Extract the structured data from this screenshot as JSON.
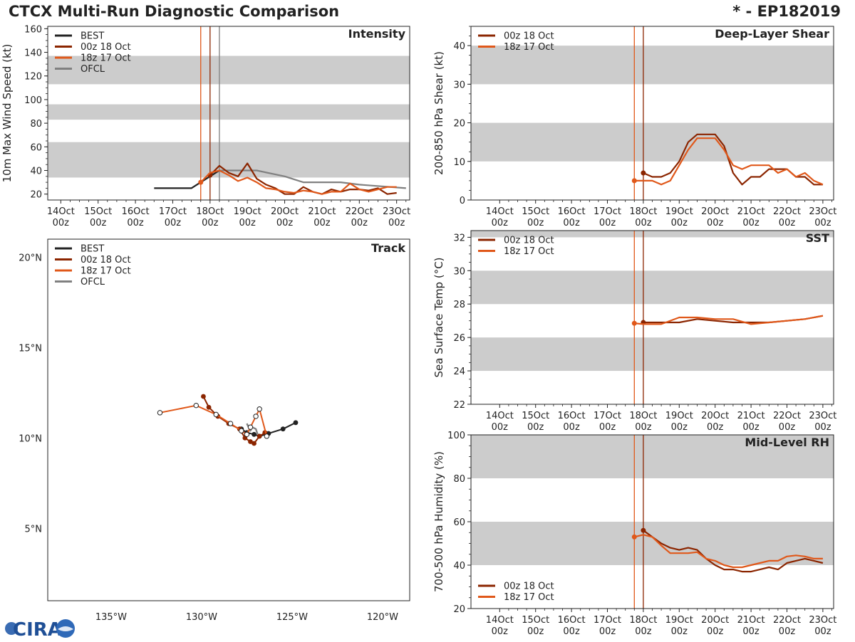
{
  "header": {
    "title": "CTCX Multi-Run Diagnostic Comparison",
    "storm": "* - EP182019"
  },
  "logo_text": "CIRA",
  "time_axis": {
    "ticks": [
      "14Oct\n00z",
      "15Oct\n00z",
      "16Oct\n00z",
      "17Oct\n00z",
      "18Oct\n00z",
      "19Oct\n00z",
      "20Oct\n00z",
      "21Oct\n00z",
      "22Oct\n00z",
      "23Oct\n00z"
    ],
    "ticks_short": [
      "14Oct\n00z",
      "15Oct\n00z",
      "16Oct\n00z",
      "17Oct\n00z",
      "18Oct\n00z",
      "19Oct\n00z",
      "20Oct\n00z",
      "21Oct\n00z",
      "22Oct\n00z",
      "23Oct\n00z"
    ]
  },
  "colors": {
    "best": "#222222",
    "run00z": "#8B2500",
    "run18z": "#E0581A",
    "ofcl": "#808080",
    "band": "#cccccc"
  },
  "chart_data": [
    {
      "id": "intensity",
      "type": "line",
      "title": "Intensity",
      "ylabel": "10m Max Wind Speed (kt)",
      "x_unit": "days since 14Oct 00z",
      "xlim": [
        -0.35,
        9.35
      ],
      "ylim": [
        15,
        162
      ],
      "yticks": [
        20,
        40,
        60,
        80,
        100,
        120,
        140,
        160
      ],
      "bands": [
        [
          34,
          64
        ],
        [
          83,
          96
        ],
        [
          113,
          137
        ]
      ],
      "vlines": [
        {
          "x": 3.75,
          "color": "run18z"
        },
        {
          "x": 4.0,
          "color": "run00z"
        },
        {
          "x": 4.25,
          "color": "ofcl"
        }
      ],
      "legend": [
        "BEST",
        "00z 18 Oct",
        "18z 17 Oct",
        "OFCL"
      ],
      "series": [
        {
          "name": "BEST",
          "color": "best",
          "x": [
            2.5,
            2.75,
            3.0,
            3.25,
            3.5,
            3.75,
            4.0,
            4.25
          ],
          "y": [
            25,
            25,
            25,
            25,
            25,
            30,
            35,
            40
          ]
        },
        {
          "name": "OFCL",
          "color": "ofcl",
          "x": [
            4.25,
            4.5,
            5.0,
            5.25,
            6.0,
            6.5,
            7.0,
            7.5,
            8.0,
            9.25
          ],
          "y": [
            40,
            40,
            40,
            40,
            35,
            30,
            30,
            30,
            28,
            25
          ]
        },
        {
          "name": "00z 18 Oct",
          "color": "run00z",
          "marker_x": 4.0,
          "x": [
            4.0,
            4.25,
            4.5,
            4.75,
            5.0,
            5.25,
            5.5,
            5.75,
            6.0,
            6.25,
            6.5,
            6.75,
            7.0,
            7.25,
            7.5,
            7.75,
            8.0,
            8.25,
            8.5,
            8.75,
            9.0
          ],
          "y": [
            36,
            44,
            38,
            35,
            46,
            33,
            28,
            25,
            20,
            20,
            26,
            22,
            20,
            24,
            22,
            24,
            24,
            23,
            25,
            20,
            21
          ]
        },
        {
          "name": "18z 17 Oct",
          "color": "run18z",
          "marker_x": 3.75,
          "x": [
            3.75,
            4.0,
            4.25,
            4.5,
            4.75,
            5.0,
            5.25,
            5.5,
            5.75,
            6.0,
            6.25,
            6.5,
            6.75,
            7.0,
            7.25,
            7.5,
            7.75,
            8.0,
            8.25,
            8.5,
            8.75,
            9.0
          ],
          "y": [
            30,
            38,
            40,
            36,
            31,
            34,
            30,
            25,
            24,
            22,
            21,
            23,
            22,
            20,
            22,
            22,
            29,
            24,
            22,
            24,
            26,
            26
          ]
        }
      ]
    },
    {
      "id": "shear",
      "type": "line",
      "title": "Deep-Layer Shear",
      "ylabel": "200-850 hPa Shear (kt)",
      "xlim": [
        -0.8,
        9.3
      ],
      "ylim": [
        0,
        45
      ],
      "yticks": [
        0,
        10,
        20,
        30,
        40
      ],
      "bands": [
        [
          10,
          20
        ],
        [
          30,
          40
        ]
      ],
      "vlines": [
        {
          "x": 3.75,
          "color": "run18z"
        },
        {
          "x": 4.0,
          "color": "run00z"
        }
      ],
      "legend": [
        "00z 18 Oct",
        "18z 17 Oct"
      ],
      "series": [
        {
          "name": "00z 18 Oct",
          "color": "run00z",
          "marker_x": 4.0,
          "x": [
            4.0,
            4.25,
            4.5,
            4.75,
            5.0,
            5.25,
            5.5,
            5.75,
            6.0,
            6.25,
            6.5,
            6.75,
            7.0,
            7.25,
            7.5,
            7.75,
            8.0,
            8.25,
            8.5,
            8.75,
            9.0
          ],
          "y": [
            7,
            6,
            6,
            7,
            10,
            15,
            17,
            17,
            17,
            14,
            7,
            4,
            6,
            6,
            8,
            8,
            8,
            6,
            6,
            4,
            4
          ]
        },
        {
          "name": "18z 17 Oct",
          "color": "run18z",
          "marker_x": 3.75,
          "x": [
            3.75,
            4.0,
            4.25,
            4.5,
            4.75,
            5.0,
            5.25,
            5.5,
            5.75,
            6.0,
            6.25,
            6.5,
            6.75,
            7.0,
            7.25,
            7.5,
            7.75,
            8.0,
            8.25,
            8.5,
            8.75,
            9.0
          ],
          "y": [
            5,
            5,
            5,
            4,
            5,
            9,
            13,
            16,
            16,
            16,
            13,
            9,
            8,
            9,
            9,
            9,
            7,
            8,
            6,
            7,
            5,
            4
          ]
        }
      ]
    },
    {
      "id": "sst",
      "type": "line",
      "title": "SST",
      "ylabel": "Sea Surface Temp (°C)",
      "xlim": [
        -0.8,
        9.3
      ],
      "ylim": [
        22,
        32.4
      ],
      "yticks": [
        22,
        24,
        26,
        28,
        30,
        32
      ],
      "bands": [
        [
          24,
          26
        ],
        [
          28,
          30
        ],
        [
          32,
          33
        ]
      ],
      "vlines": [
        {
          "x": 3.75,
          "color": "run18z"
        },
        {
          "x": 4.0,
          "color": "run00z"
        }
      ],
      "legend": [
        "00z 18 Oct",
        "18z 17 Oct"
      ],
      "series": [
        {
          "name": "00z 18 Oct",
          "color": "run00z",
          "marker_x": 4.0,
          "x": [
            4.0,
            4.5,
            5.0,
            5.5,
            6.0,
            6.5,
            7.0,
            7.5,
            8.0,
            8.5,
            9.0
          ],
          "y": [
            26.9,
            26.9,
            26.9,
            27.1,
            27.0,
            26.9,
            26.9,
            26.9,
            27.0,
            27.1,
            27.3
          ]
        },
        {
          "name": "18z 17 Oct",
          "color": "run18z",
          "marker_x": 3.75,
          "x": [
            3.75,
            4.0,
            4.5,
            5.0,
            5.5,
            6.0,
            6.5,
            7.0,
            7.5,
            8.0,
            8.5,
            9.0
          ],
          "y": [
            26.85,
            26.8,
            26.8,
            27.2,
            27.2,
            27.1,
            27.1,
            26.8,
            26.9,
            27.0,
            27.1,
            27.3
          ]
        }
      ]
    },
    {
      "id": "rh",
      "type": "line",
      "title": "Mid-Level RH",
      "ylabel": "700-500 hPa Humidity (%)",
      "xlim": [
        -0.8,
        9.3
      ],
      "ylim": [
        20,
        100
      ],
      "yticks": [
        20,
        40,
        60,
        80,
        100
      ],
      "bands": [
        [
          40,
          60
        ],
        [
          80,
          100
        ]
      ],
      "vlines": [
        {
          "x": 3.75,
          "color": "run18z"
        },
        {
          "x": 4.0,
          "color": "run00z"
        }
      ],
      "legend": [
        "00z 18 Oct",
        "18z 17 Oct"
      ],
      "legend_pos": "bottom-left",
      "series": [
        {
          "name": "00z 18 Oct",
          "color": "run00z",
          "marker_x": 4.0,
          "x": [
            4.0,
            4.25,
            4.5,
            4.75,
            5.0,
            5.25,
            5.5,
            5.75,
            6.0,
            6.25,
            6.5,
            6.75,
            7.0,
            7.25,
            7.5,
            7.75,
            8.0,
            8.25,
            8.5,
            8.75,
            9.0
          ],
          "y": [
            56,
            53,
            50,
            48,
            47,
            48,
            47,
            43,
            40,
            38,
            38,
            37,
            37,
            38,
            39,
            38,
            41,
            42,
            43,
            42,
            41
          ]
        },
        {
          "name": "18z 17 Oct",
          "color": "run18z",
          "marker_x": 3.75,
          "x": [
            3.75,
            4.0,
            4.25,
            4.5,
            4.75,
            5.0,
            5.25,
            5.5,
            5.75,
            6.0,
            6.25,
            6.5,
            6.75,
            7.0,
            7.25,
            7.5,
            7.75,
            8.0,
            8.25,
            8.5,
            8.75,
            9.0
          ],
          "y": [
            53,
            54,
            53,
            49,
            45.5,
            45.5,
            45.5,
            46,
            43,
            42,
            40,
            39,
            39,
            40,
            41,
            42,
            42,
            44,
            44.5,
            44,
            43,
            43
          ]
        }
      ]
    },
    {
      "id": "track",
      "type": "scatter",
      "title": "Track",
      "x_unit": "degrees longitude (negative = W)",
      "xlim": [
        -138.5,
        -118.5
      ],
      "ylim": [
        1,
        21
      ],
      "xticks": [
        -135,
        -130,
        -125,
        -120
      ],
      "xtick_labels": [
        "135°W",
        "130°W",
        "125°W",
        "120°W"
      ],
      "yticks": [
        5,
        10,
        15,
        20
      ],
      "ytick_labels": [
        "5°N",
        "10°N",
        "15°N",
        "20°N"
      ],
      "legend": [
        "BEST",
        "00z 18 Oct",
        "18z 17 Oct",
        "OFCL"
      ],
      "series": [
        {
          "name": "OFCL",
          "color": "ofcl",
          "marker": "none",
          "lon": [
            -127.5,
            -127.3,
            -127.2,
            -127.0,
            -126.9
          ],
          "lat": [
            10.8,
            10.4,
            10.6,
            10.5,
            10.2
          ]
        },
        {
          "name": "BEST",
          "color": "best",
          "marker": "filled",
          "lon": [
            -124.8,
            -125.5,
            -126.3,
            -126.8,
            -127.1,
            -127.5,
            -127.8
          ],
          "lat": [
            10.85,
            10.5,
            10.25,
            10.1,
            10.2,
            10.3,
            10.5
          ]
        },
        {
          "name": "00z 18 Oct",
          "color": "run00z",
          "marker": "filled",
          "lon": [
            -129.9,
            -129.6,
            -129.1,
            -128.5,
            -127.9,
            -127.6,
            -127.3,
            -127.1,
            -126.8,
            -126.5
          ],
          "lat": [
            12.3,
            11.7,
            11.2,
            10.8,
            10.5,
            10.0,
            9.8,
            9.7,
            10.1,
            10.3
          ]
        },
        {
          "name": "18z 17 Oct",
          "color": "run18z",
          "marker": "open",
          "lon": [
            -132.3,
            -130.3,
            -129.2,
            -128.4,
            -127.8,
            -127.5,
            -127.3,
            -127.0,
            -126.8,
            -126.4
          ],
          "lat": [
            11.4,
            11.8,
            11.3,
            10.8,
            10.4,
            10.2,
            10.6,
            11.2,
            11.6,
            10.1
          ]
        }
      ]
    }
  ]
}
